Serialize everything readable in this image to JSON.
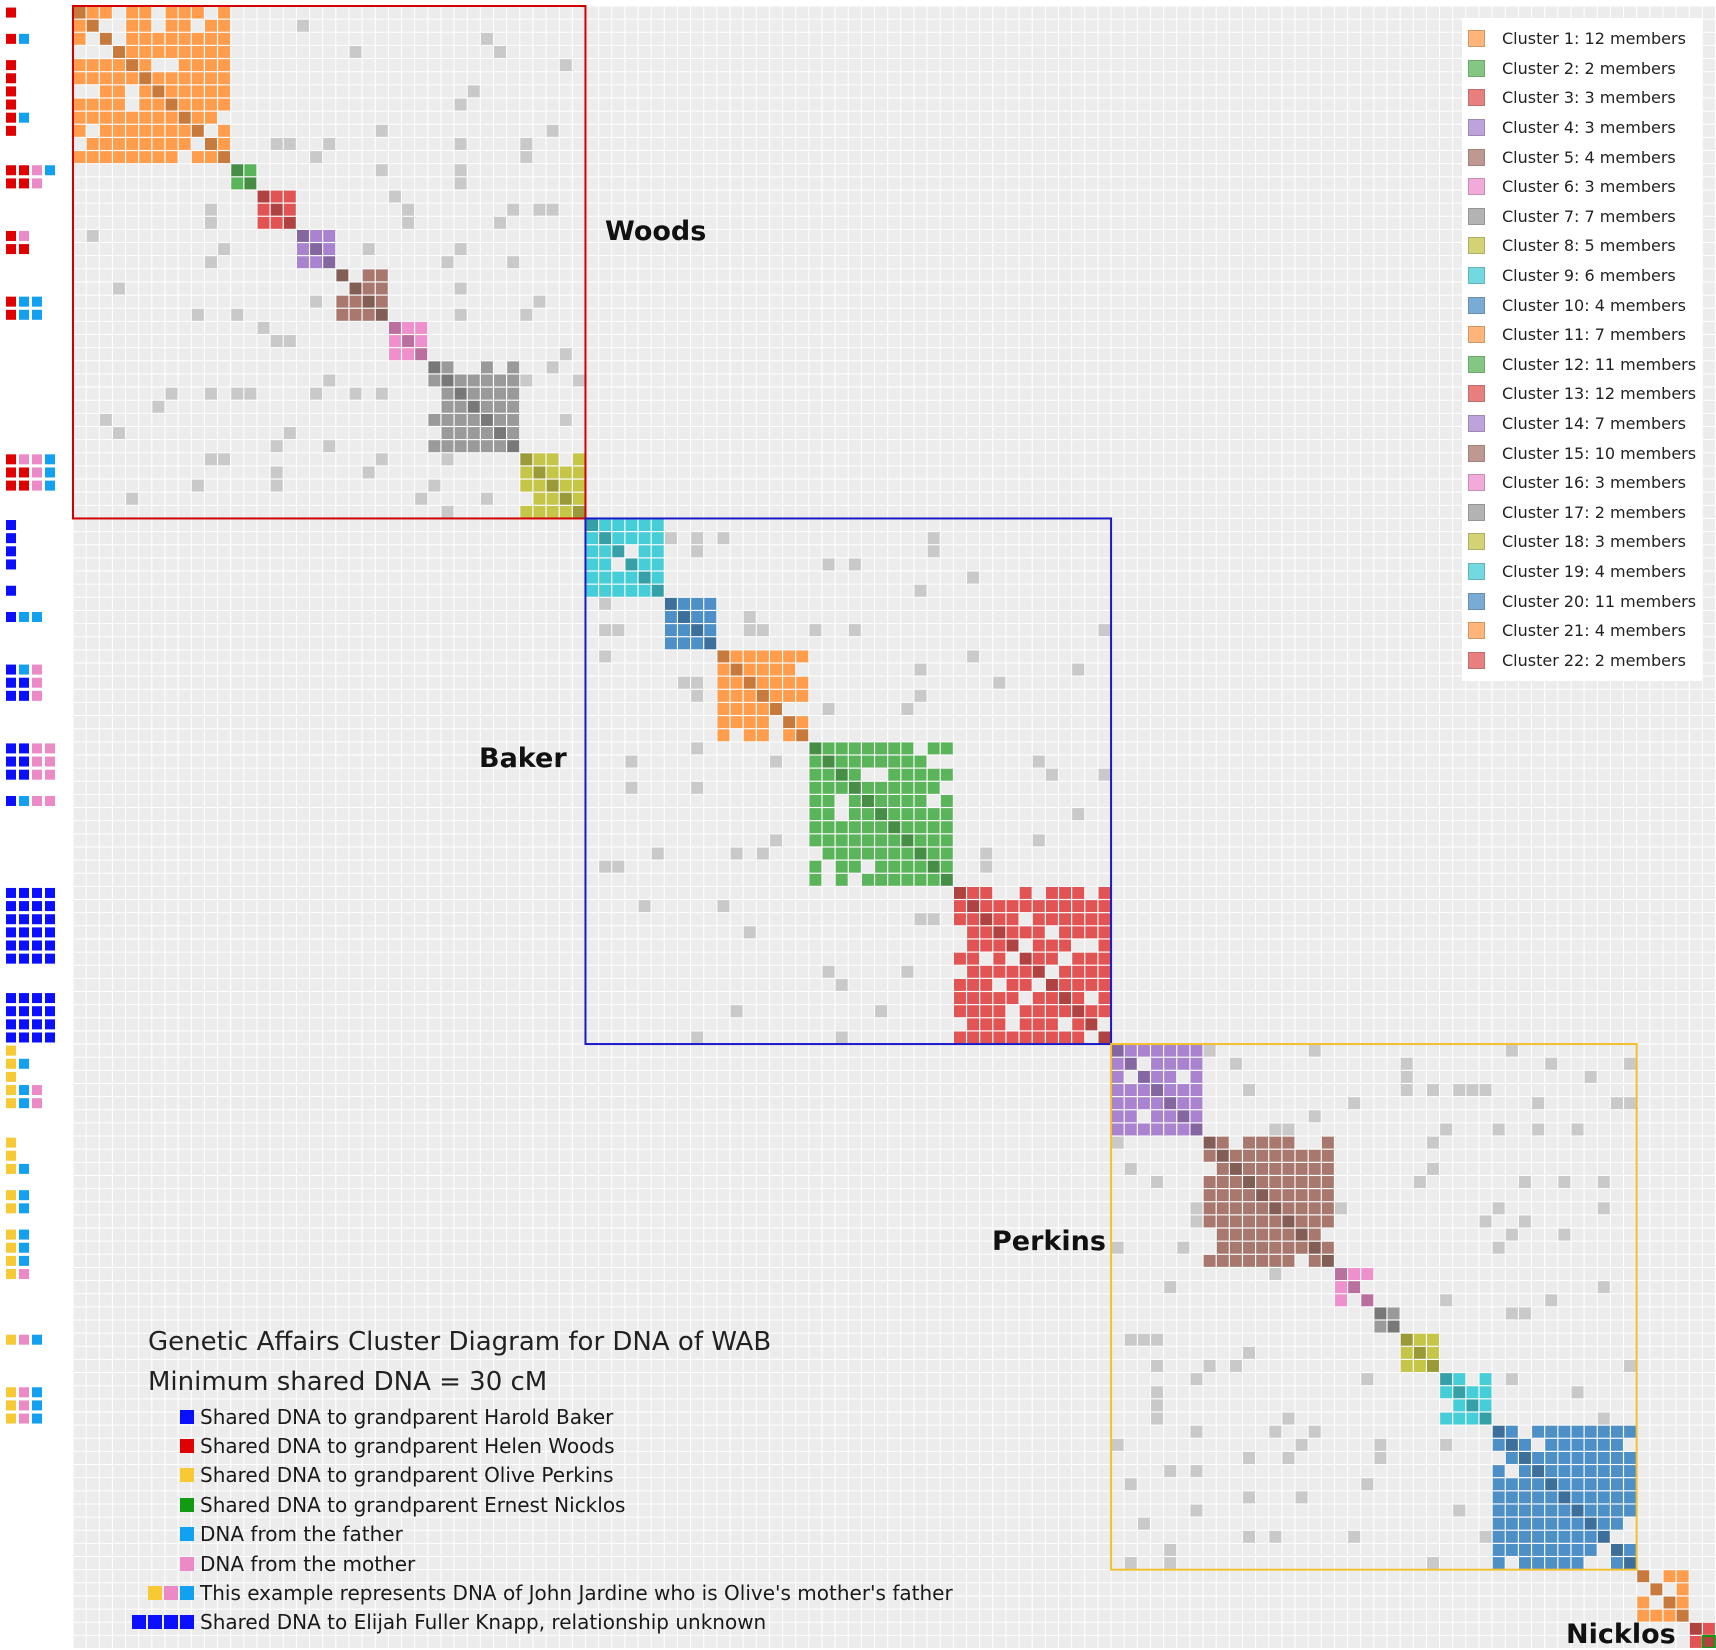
{
  "title": {
    "line1": "Genetic Affairs Cluster Diagram for DNA of WAB",
    "line2": "Minimum shared DNA = 30 cM"
  },
  "groups": [
    {
      "name": "Woods",
      "color": "#d40000"
    },
    {
      "name": "Baker",
      "color": "#1a1ac8"
    },
    {
      "name": "Perkins",
      "color": "#f5c030"
    },
    {
      "name": "Nicklos",
      "color": "#ffffff"
    }
  ],
  "legend": [
    {
      "label": "Cluster 1: 12 members",
      "color": "#ff9d4d",
      "members": 12
    },
    {
      "label": "Cluster 2: 2 members",
      "color": "#5ab55a",
      "members": 2
    },
    {
      "label": "Cluster 3: 3 members",
      "color": "#e25454",
      "members": 3
    },
    {
      "label": "Cluster 4: 3 members",
      "color": "#a983cf",
      "members": 3
    },
    {
      "label": "Cluster 5: 4 members",
      "color": "#a8786e",
      "members": 4
    },
    {
      "label": "Cluster 6: 3 members",
      "color": "#ee90cc",
      "members": 3
    },
    {
      "label": "Cluster 7: 7 members",
      "color": "#9a9a9a",
      "members": 7
    },
    {
      "label": "Cluster 8: 5 members",
      "color": "#c5c548",
      "members": 5
    },
    {
      "label": "Cluster 9: 6 members",
      "color": "#45cdd8",
      "members": 6
    },
    {
      "label": "Cluster 10: 4 members",
      "color": "#4d8fc7",
      "members": 4
    },
    {
      "label": "Cluster 11: 7 members",
      "color": "#ff9d4d",
      "members": 7
    },
    {
      "label": "Cluster 12: 11 members",
      "color": "#5ab55a",
      "members": 11
    },
    {
      "label": "Cluster 13: 12 members",
      "color": "#e25454",
      "members": 12
    },
    {
      "label": "Cluster 14: 7 members",
      "color": "#a983cf",
      "members": 7
    },
    {
      "label": "Cluster 15: 10 members",
      "color": "#a8786e",
      "members": 10
    },
    {
      "label": "Cluster 16: 3 members",
      "color": "#ee90cc",
      "members": 3
    },
    {
      "label": "Cluster 17: 2 members",
      "color": "#9a9a9a",
      "members": 2
    },
    {
      "label": "Cluster 18: 3 members",
      "color": "#c5c548",
      "members": 3
    },
    {
      "label": "Cluster 19: 4 members",
      "color": "#45cdd8",
      "members": 4
    },
    {
      "label": "Cluster 20: 11 members",
      "color": "#4d8fc7",
      "members": 11
    },
    {
      "label": "Cluster 21: 4 members",
      "color": "#ff9d4d",
      "members": 4
    },
    {
      "label": "Cluster 22: 2 members",
      "color": "#e25454",
      "members": 2
    }
  ],
  "key": [
    {
      "label": "Shared DNA to grandparent Harold Baker",
      "swatches": [
        "#0a10ff"
      ]
    },
    {
      "label": "Shared DNA to grandparent Helen Woods",
      "swatches": [
        "#e00000"
      ]
    },
    {
      "label": "Shared DNA to grandparent Olive Perkins",
      "swatches": [
        "#f7c935"
      ]
    },
    {
      "label": "Shared DNA to grandparent Ernest Nicklos",
      "swatches": [
        "#129a12"
      ]
    },
    {
      "label": "DNA from the father",
      "swatches": [
        "#12a0f0"
      ]
    },
    {
      "label": "DNA from the mother",
      "swatches": [
        "#ec8ac8"
      ]
    },
    {
      "label": "This example represents DNA of John Jardine who is Olive's mother's father",
      "swatches": [
        "#f7c935",
        "#ec8ac8",
        "#12a0f0"
      ]
    },
    {
      "label": "Shared DNA to Elijah Fuller Knapp, relationship unknown",
      "swatches": [
        "#0a10ff",
        "#0a10ff",
        "#0a10ff",
        "#0a10ff"
      ]
    }
  ],
  "side_colors": {
    "baker": "#0a10ff",
    "woods": "#e00000",
    "perkins": "#f7c935",
    "nicklos": "#129a12",
    "father": "#12a0f0",
    "mother": "#ec8ac8"
  },
  "matrix_colors": {
    "background_cell": "#ececec",
    "cross_match": "#c9c9c9"
  }
}
